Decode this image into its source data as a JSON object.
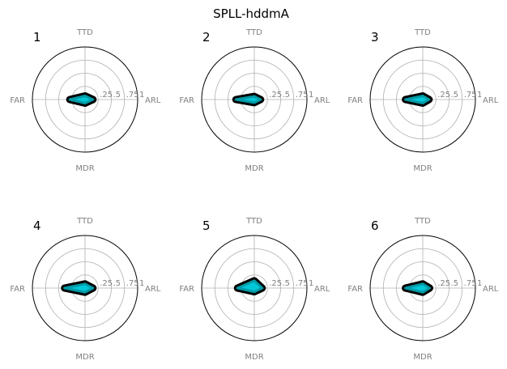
{
  "figure": {
    "title": "SPLL-hddmA"
  },
  "chart_data": {
    "type": "radar",
    "axes": [
      "ARL",
      "TTD",
      "FAR",
      "MDR"
    ],
    "radial_ticks": [
      ".25",
      ".5",
      ".75",
      "1"
    ],
    "rlim": [
      0,
      1
    ],
    "grid": true,
    "colors": {
      "fill": "#00c8d8",
      "outline": "#000000",
      "grid": "#b0b0b0",
      "labels": "#808080"
    },
    "panels": [
      {
        "label": "1",
        "values": {
          "ARL": 0.15,
          "TTD": 0.07,
          "FAR": 0.29,
          "MDR": 0.07
        }
      },
      {
        "label": "2",
        "values": {
          "ARL": 0.12,
          "TTD": 0.06,
          "FAR": 0.35,
          "MDR": 0.06
        }
      },
      {
        "label": "3",
        "values": {
          "ARL": 0.12,
          "TTD": 0.07,
          "FAR": 0.33,
          "MDR": 0.07
        }
      },
      {
        "label": "4",
        "values": {
          "ARL": 0.15,
          "TTD": 0.08,
          "FAR": 0.39,
          "MDR": 0.08
        }
      },
      {
        "label": "5",
        "values": {
          "ARL": 0.15,
          "TTD": 0.14,
          "FAR": 0.32,
          "MDR": 0.07
        }
      },
      {
        "label": "6",
        "values": {
          "ARL": 0.13,
          "TTD": 0.08,
          "FAR": 0.33,
          "MDR": 0.08
        }
      }
    ]
  }
}
